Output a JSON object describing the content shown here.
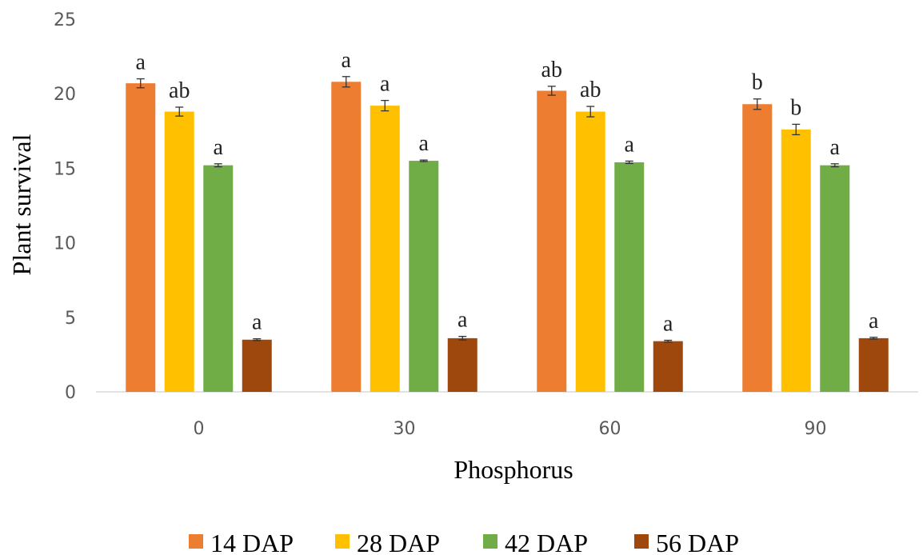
{
  "chart_data": {
    "type": "bar",
    "title": "",
    "xlabel": "Phosphorus",
    "ylabel": "Plant survival",
    "categories": [
      "0",
      "30",
      "60",
      "90"
    ],
    "ylim": [
      0,
      25
    ],
    "yticks": [
      0,
      5,
      10,
      15,
      20,
      25
    ],
    "grid": false,
    "legend_position": "bottom",
    "error_bars": true,
    "series": [
      {
        "name": "14 DAP",
        "color": "#ED7D31",
        "values": [
          20.7,
          20.8,
          20.2,
          19.3
        ],
        "errors": [
          0.3,
          0.35,
          0.3,
          0.35
        ],
        "labels": [
          "a",
          "a",
          "ab",
          "b"
        ]
      },
      {
        "name": "28 DAP",
        "color": "#FFC000",
        "values": [
          18.8,
          19.2,
          18.8,
          17.6
        ],
        "errors": [
          0.3,
          0.35,
          0.35,
          0.35
        ],
        "labels": [
          "ab",
          "a",
          "ab",
          "b"
        ]
      },
      {
        "name": "42 DAP",
        "color": "#70AD47",
        "values": [
          15.2,
          15.5,
          15.4,
          15.2
        ],
        "errors": [
          0.1,
          0.05,
          0.08,
          0.1
        ],
        "labels": [
          "a",
          "a",
          "a",
          "a"
        ]
      },
      {
        "name": "56 DAP",
        "color": "#9E480E",
        "values": [
          3.5,
          3.6,
          3.4,
          3.6
        ],
        "errors": [
          0.06,
          0.12,
          0.06,
          0.06
        ],
        "labels": [
          "a",
          "a",
          "a",
          "a"
        ]
      }
    ]
  }
}
